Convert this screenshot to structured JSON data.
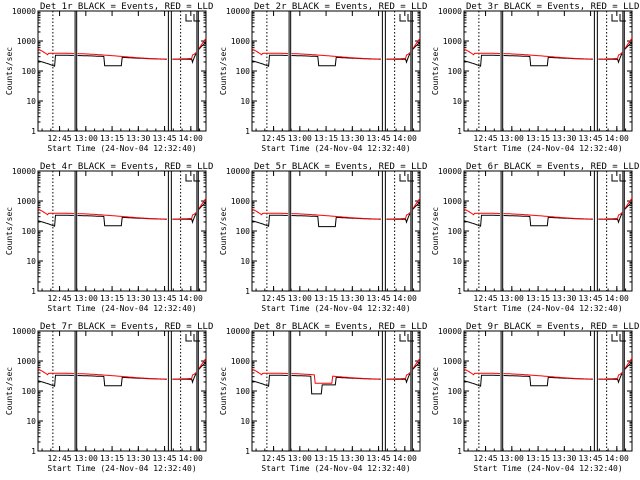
{
  "colors": {
    "events": "#000000",
    "lld": "#ff0000",
    "axis": "#000000",
    "background": "#ffffff"
  },
  "chart_data": [
    {
      "type": "line",
      "title": "Det 1r BLACK = Events, RED = LLD",
      "xlabel": "Start Time (24-Nov-04 12:32:40)",
      "ylabel": "Counts/sec",
      "x_ticks": [
        "12:45",
        "13:00",
        "13:15",
        "13:30",
        "13:45",
        "14:00"
      ],
      "y_ticks": [
        "1",
        "10",
        "100",
        "1000",
        "10000"
      ],
      "y_scale": "log",
      "ylim": [
        1,
        10000
      ],
      "x_range_minutes": [
        0,
        96
      ],
      "series": [
        {
          "name": "Events",
          "color": "#000000",
          "dips": [
            [
              38,
              48,
              150
            ]
          ]
        },
        {
          "name": "LLD",
          "color": "#ff0000"
        }
      ]
    },
    {
      "type": "line",
      "title": "Det 2r BLACK = Events, RED = LLD",
      "xlabel": "Start Time (24-Nov-04 12:32:40)",
      "ylabel": "Counts/sec",
      "x_ticks": [
        "12:45",
        "13:00",
        "13:15",
        "13:30",
        "13:45",
        "14:00"
      ],
      "y_ticks": [
        "1",
        "10",
        "100",
        "1000",
        "10000"
      ],
      "y_scale": "log",
      "ylim": [
        1,
        10000
      ],
      "x_range_minutes": [
        0,
        96
      ],
      "series": [
        {
          "name": "Events",
          "color": "#000000",
          "dips": [
            [
              38,
              48,
              150
            ]
          ]
        },
        {
          "name": "LLD",
          "color": "#ff0000"
        }
      ]
    },
    {
      "type": "line",
      "title": "Det 3r BLACK = Events, RED = LLD",
      "xlabel": "Start Time (24-Nov-04 12:32:40)",
      "ylabel": "Counts/sec",
      "x_ticks": [
        "12:45",
        "13:00",
        "13:15",
        "13:30",
        "13:45",
        "14:00"
      ],
      "y_ticks": [
        "1",
        "10",
        "100",
        "1000",
        "10000"
      ],
      "y_scale": "log",
      "ylim": [
        1,
        10000
      ],
      "x_range_minutes": [
        0,
        96
      ],
      "series": [
        {
          "name": "Events",
          "color": "#000000",
          "dips": [
            [
              38,
              48,
              150
            ]
          ]
        },
        {
          "name": "LLD",
          "color": "#ff0000"
        }
      ]
    },
    {
      "type": "line",
      "title": "Det 4r BLACK = Events, RED = LLD",
      "xlabel": "Start Time (24-Nov-04 12:32:40)",
      "ylabel": "Counts/sec",
      "x_ticks": [
        "12:45",
        "13:00",
        "13:15",
        "13:30",
        "13:45",
        "14:00"
      ],
      "y_ticks": [
        "1",
        "10",
        "100",
        "1000",
        "10000"
      ],
      "y_scale": "log",
      "ylim": [
        1,
        10000
      ],
      "x_range_minutes": [
        0,
        96
      ],
      "series": [
        {
          "name": "Events",
          "color": "#000000",
          "dips": [
            [
              38,
              48,
              150
            ]
          ]
        },
        {
          "name": "LLD",
          "color": "#ff0000"
        }
      ]
    },
    {
      "type": "line",
      "title": "Det 5r BLACK = Events, RED = LLD",
      "xlabel": "Start Time (24-Nov-04 12:32:40)",
      "ylabel": "Counts/sec",
      "x_ticks": [
        "12:45",
        "13:00",
        "13:15",
        "13:30",
        "13:45",
        "14:00"
      ],
      "y_ticks": [
        "1",
        "10",
        "100",
        "1000",
        "10000"
      ],
      "y_scale": "log",
      "ylim": [
        1,
        10000
      ],
      "x_range_minutes": [
        0,
        96
      ],
      "series": [
        {
          "name": "Events",
          "color": "#000000",
          "dips": [
            [
              38,
              48,
              140
            ]
          ]
        },
        {
          "name": "LLD",
          "color": "#ff0000"
        }
      ]
    },
    {
      "type": "line",
      "title": "Det 6r BLACK = Events, RED = LLD",
      "xlabel": "Start Time (24-Nov-04 12:32:40)",
      "ylabel": "Counts/sec",
      "x_ticks": [
        "12:45",
        "13:00",
        "13:15",
        "13:30",
        "13:45",
        "14:00"
      ],
      "y_ticks": [
        "1",
        "10",
        "100",
        "1000",
        "10000"
      ],
      "y_scale": "log",
      "ylim": [
        1,
        10000
      ],
      "x_range_minutes": [
        0,
        96
      ],
      "series": [
        {
          "name": "Events",
          "color": "#000000",
          "dips": [
            [
              38,
              48,
              150
            ]
          ]
        },
        {
          "name": "LLD",
          "color": "#ff0000"
        }
      ]
    },
    {
      "type": "line",
      "title": "Det 7r BLACK = Events, RED = LLD",
      "xlabel": "Start Time (24-Nov-04 12:32:40)",
      "ylabel": "Counts/sec",
      "x_ticks": [
        "12:45",
        "13:00",
        "13:15",
        "13:30",
        "13:45",
        "14:00"
      ],
      "y_ticks": [
        "1",
        "10",
        "100",
        "1000",
        "10000"
      ],
      "y_scale": "log",
      "ylim": [
        1,
        10000
      ],
      "x_range_minutes": [
        0,
        96
      ],
      "series": [
        {
          "name": "Events",
          "color": "#000000",
          "dips": [
            [
              38,
              48,
              150
            ]
          ]
        },
        {
          "name": "LLD",
          "color": "#ff0000"
        }
      ]
    },
    {
      "type": "line",
      "title": "Det 8r BLACK = Events, RED = LLD",
      "xlabel": "Start Time (24-Nov-04 12:32:40)",
      "ylabel": "Counts/sec",
      "x_ticks": [
        "12:45",
        "13:00",
        "13:15",
        "13:30",
        "13:45",
        "14:00"
      ],
      "y_ticks": [
        "1",
        "10",
        "100",
        "1000",
        "10000"
      ],
      "y_scale": "log",
      "ylim": [
        1,
        10000
      ],
      "x_range_minutes": [
        0,
        96
      ],
      "series": [
        {
          "name": "Events",
          "color": "#000000",
          "dips": [
            [
              34,
              40,
              80
            ],
            [
              40,
              48,
              160
            ]
          ]
        },
        {
          "name": "LLD",
          "color": "#ff0000",
          "dips": [
            [
              36,
              46,
              180
            ]
          ]
        }
      ]
    },
    {
      "type": "line",
      "title": "Det 9r BLACK = Events, RED = LLD",
      "xlabel": "Start Time (24-Nov-04 12:32:40)",
      "ylabel": "Counts/sec",
      "x_ticks": [
        "12:45",
        "13:00",
        "13:15",
        "13:30",
        "13:45",
        "14:00"
      ],
      "y_ticks": [
        "1",
        "10",
        "100",
        "1000",
        "10000"
      ],
      "y_scale": "log",
      "ylim": [
        1,
        10000
      ],
      "x_range_minutes": [
        0,
        96
      ],
      "series": [
        {
          "name": "Events",
          "color": "#000000",
          "dips": [
            [
              38,
              48,
              150
            ]
          ]
        },
        {
          "name": "LLD",
          "color": "#ff0000"
        }
      ]
    }
  ]
}
